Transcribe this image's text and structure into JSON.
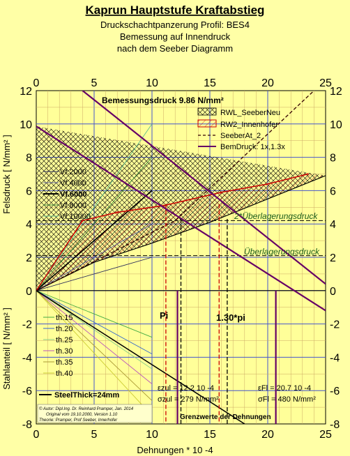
{
  "header": {
    "title": "Kaprun Hauptstufe Kraftabstieg",
    "line1": "Druckschachtpanzerung Profil: BES4",
    "line2": "Bemessung auf Innendruck",
    "line3": "nach dem Seeber Diagramm"
  },
  "chart_data": {
    "type": "line",
    "xlabel": "Dehnungen * 10 -4",
    "ylabel_upper": "Felsdruck [ N/mm² ]",
    "ylabel_lower": "Stahlanteil [ N/mm² ]",
    "xlim": [
      0,
      25
    ],
    "ylim": [
      -8,
      12
    ],
    "x_ticks": [
      "0",
      "5",
      "10",
      "15",
      "20",
      "25"
    ],
    "y_ticks": [
      "-8",
      "-6",
      "-4",
      "-2",
      "0",
      "2",
      "4",
      "6",
      "8",
      "10",
      "12"
    ],
    "grid": true,
    "design_pressure_label": "Bemessungsdruck 9.86 N/mm²",
    "legend_main": [
      {
        "label": "RWL_SeeberNeu",
        "color": "#000000",
        "style": "hatch"
      },
      {
        "label": "RW2_Innenhofer",
        "color": "#cc0000",
        "style": "hatch"
      },
      {
        "label": "SeeberAt_2",
        "color": "#330000",
        "style": "dashed"
      },
      {
        "label": "BemDruck: 1x,1.3x",
        "color": "#660066",
        "style": "solid"
      }
    ],
    "rock_modulus_series": [
      {
        "name": "Vf.2000",
        "color": "#2a2a5a",
        "x": [
          0,
          10
        ],
        "y": [
          0,
          2
        ]
      },
      {
        "name": "Vf.4000",
        "color": "#6060a0",
        "x": [
          0,
          10
        ],
        "y": [
          0,
          4
        ]
      },
      {
        "name": "Vf.6000",
        "color": "#000000",
        "x": [
          0,
          10
        ],
        "y": [
          0,
          6
        ]
      },
      {
        "name": "Vf.8000",
        "color": "#3a8a3a",
        "x": [
          0,
          10
        ],
        "y": [
          0,
          8
        ]
      },
      {
        "name": "Vf.10000",
        "color": "#5fbf8f",
        "x": [
          0,
          10
        ],
        "y": [
          0,
          10
        ]
      }
    ],
    "steel_series": [
      {
        "name": "th.15",
        "color": "#44aa44",
        "x": [
          0,
          10
        ],
        "y": [
          0,
          -2.8
        ]
      },
      {
        "name": "th.20",
        "color": "#3366cc",
        "x": [
          0,
          10
        ],
        "y": [
          0,
          -3.8
        ]
      },
      {
        "name": "th.25",
        "color": "#88cc88",
        "x": [
          0,
          10
        ],
        "y": [
          0,
          -4.7
        ]
      },
      {
        "name": "th.30",
        "color": "#bb55bb",
        "x": [
          0,
          10
        ],
        "y": [
          0,
          -5.6
        ]
      },
      {
        "name": "th.35",
        "color": "#aa9933",
        "x": [
          0,
          10
        ],
        "y": [
          0,
          -6.6
        ]
      },
      {
        "name": "th.40",
        "color": "#cccc33",
        "x": [
          0,
          10
        ],
        "y": [
          0,
          -7.5
        ]
      }
    ],
    "steel_thick_series": {
      "name": "SteelThick=24mm",
      "color": "#000000",
      "x": [
        0,
        18
      ],
      "y": [
        0,
        -8
      ]
    },
    "seeber_neu": {
      "x": [
        0,
        5,
        10,
        15,
        20,
        25
      ],
      "y": [
        0,
        1.7,
        2.85,
        4.1,
        5.5,
        6.9
      ]
    },
    "innenhofer": {
      "x": [
        0,
        4,
        7,
        11,
        16,
        20,
        23.5
      ],
      "y": [
        0,
        4.2,
        4.7,
        5.1,
        5.9,
        6.4,
        7.0
      ]
    },
    "seeber_at2": {
      "x": [
        0,
        12,
        24
      ],
      "y": [
        0,
        4.2,
        12
      ]
    },
    "bem_druck_1x": {
      "x": [
        0,
        25
      ],
      "y": [
        9.86,
        -1.2
      ]
    },
    "bem_druck_13x": {
      "x": [
        4,
        25
      ],
      "y": [
        12,
        0.4
      ]
    },
    "overburden_2": {
      "label": "2*Überlagerungsdruck",
      "y": 4.2
    },
    "overburden_1": {
      "label": "Überlagerungsdruck",
      "y": 2.1
    },
    "vlines_red": [
      11.2,
      15.8
    ],
    "vlines_black": [
      12.5,
      16.5
    ],
    "vlines_purple": [
      12.2,
      20.7
    ],
    "annotations": {
      "pi": "Pi",
      "pi13": "1.30*pi",
      "eps1": "εzul = 12.2 10 -4",
      "sig1": "σzul = 279 N/mm²",
      "eps2": "εFl = 20.7 10 -4",
      "sig2": "σFl = 480 N/mm²",
      "limits": "Grenzwerte der Dehnungen"
    }
  },
  "footer": {
    "author": "© Autor: Dipl.Ing. Dr. Reinhard Pramper, Jan. 2014",
    "original": "Original vom 19.10.2000, Version 1.10",
    "theory": "Theorie: Pramper, Prof Seeber, Innerhofer"
  }
}
